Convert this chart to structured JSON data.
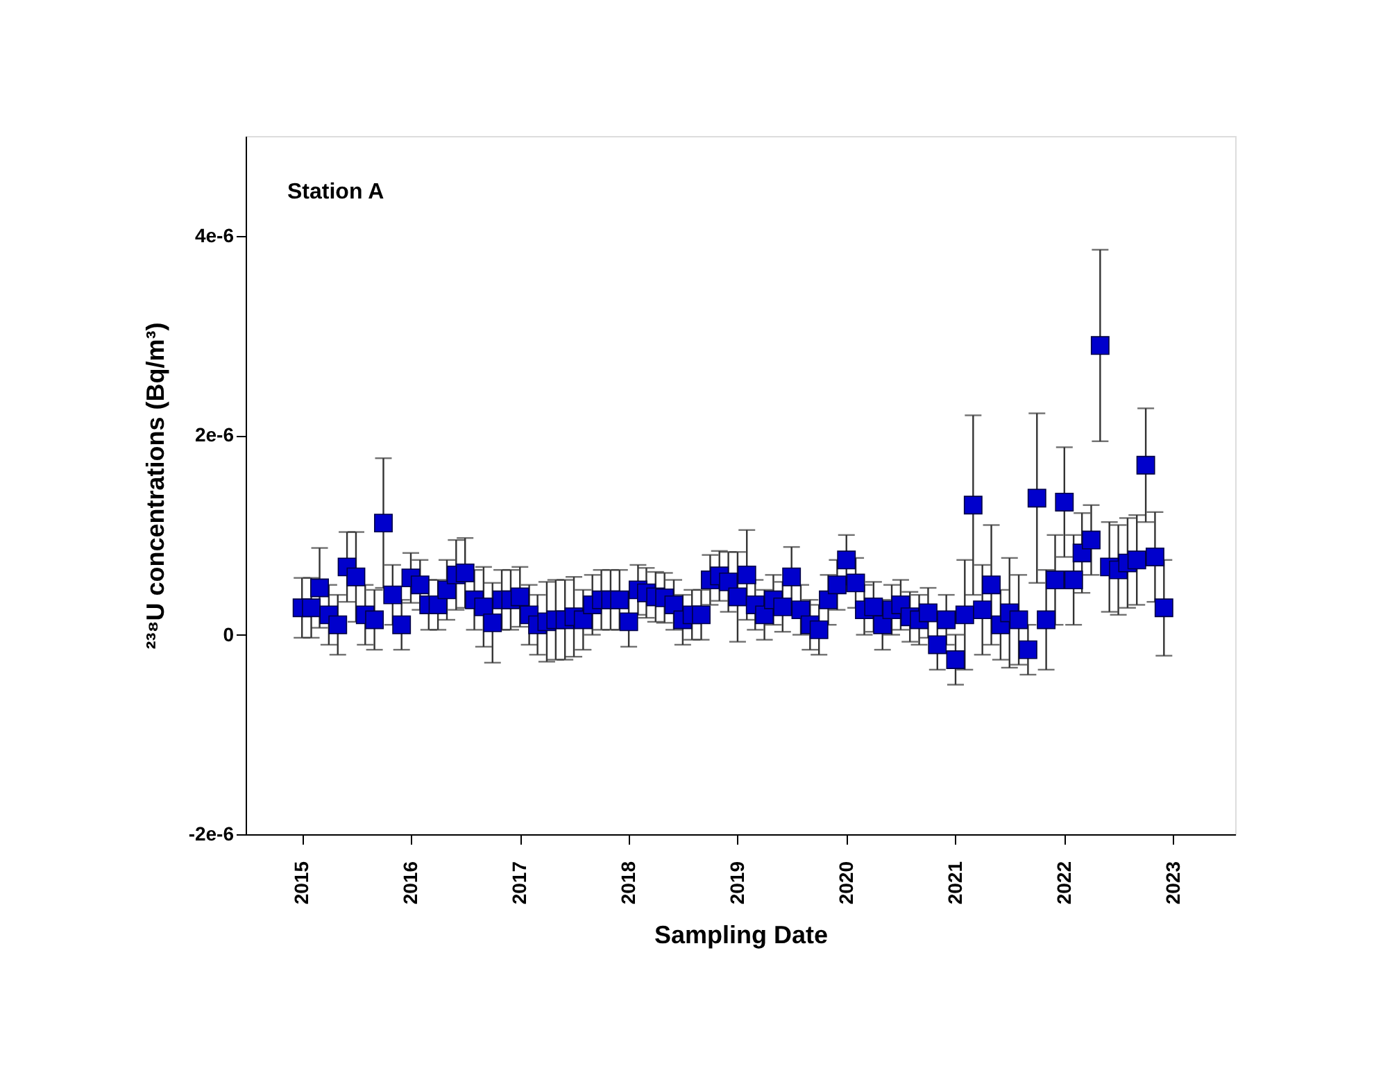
{
  "chart_data": {
    "type": "scatter",
    "xlabel": "Sampling Date",
    "ylabel": "²³⁸U concentrations (Bq/m³)",
    "annotations": [
      "Station A"
    ],
    "x": [
      "2015-01",
      "2015-02",
      "2015-03",
      "2015-04",
      "2015-05",
      "2015-06",
      "2015-07",
      "2015-08",
      "2015-09",
      "2015-10",
      "2015-11",
      "2015-12",
      "2016-01",
      "2016-02",
      "2016-03",
      "2016-04",
      "2016-05",
      "2016-06",
      "2016-07",
      "2016-08",
      "2016-09",
      "2016-10",
      "2016-11",
      "2016-12",
      "2017-01",
      "2017-02",
      "2017-03",
      "2017-04",
      "2017-05",
      "2017-06",
      "2017-07",
      "2017-08",
      "2017-09",
      "2017-10",
      "2017-11",
      "2017-12",
      "2018-01",
      "2018-02",
      "2018-03",
      "2018-04",
      "2018-05",
      "2018-06",
      "2018-07",
      "2018-08",
      "2018-09",
      "2018-10",
      "2018-11",
      "2018-12",
      "2019-01",
      "2019-02",
      "2019-03",
      "2019-04",
      "2019-05",
      "2019-06",
      "2019-07",
      "2019-08",
      "2019-09",
      "2019-10",
      "2019-11",
      "2019-12",
      "2020-01",
      "2020-02",
      "2020-03",
      "2020-04",
      "2020-05",
      "2020-06",
      "2020-07",
      "2020-08",
      "2020-09",
      "2020-10",
      "2020-11",
      "2020-12",
      "2021-01",
      "2021-02",
      "2021-03",
      "2021-04",
      "2021-05",
      "2021-06",
      "2021-07",
      "2021-08",
      "2021-09",
      "2021-10",
      "2021-11",
      "2021-12",
      "2022-01",
      "2022-02",
      "2022-03",
      "2022-04",
      "2022-05",
      "2022-06",
      "2022-07",
      "2022-08",
      "2022-09",
      "2022-10",
      "2022-11",
      "2022-12"
    ],
    "series": [
      {
        "color": "#0000cc",
        "values": [
          2.7e-07,
          2.7e-07,
          4.7e-07,
          2e-07,
          1e-07,
          6.8e-07,
          5.8e-07,
          2e-07,
          1.5e-07,
          1.12e-06,
          4e-07,
          1e-07,
          5.7e-07,
          5e-07,
          3e-07,
          3e-07,
          4.5e-07,
          6e-07,
          6.2e-07,
          3.5e-07,
          2.8e-07,
          1.2e-07,
          3.5e-07,
          3.5e-07,
          3.8e-07,
          2e-07,
          1e-07,
          1.3e-07,
          1.5e-07,
          1.5e-07,
          1.8e-07,
          1.5e-07,
          3e-07,
          3.5e-07,
          3.5e-07,
          3.5e-07,
          1.3e-07,
          4.5e-07,
          4.2e-07,
          3.8e-07,
          3.7e-07,
          3e-07,
          1.5e-07,
          2e-07,
          2e-07,
          5.5e-07,
          5.9e-07,
          5.3e-07,
          3.8e-07,
          6e-07,
          3e-07,
          2e-07,
          3.5e-07,
          2.8e-07,
          5.8e-07,
          2.5e-07,
          1e-07,
          5e-08,
          3.5e-07,
          5e-07,
          7.5e-07,
          5.2e-07,
          2.5e-07,
          2.8e-07,
          1e-07,
          2.5e-07,
          3e-07,
          1.8e-07,
          1.5e-07,
          2.2e-07,
          -1e-07,
          1.5e-07,
          -2.5e-07,
          2e-07,
          1.3e-06,
          2.5e-07,
          5e-07,
          1e-07,
          2.2e-07,
          1.5e-07,
          -1.5e-07,
          1.37e-06,
          1.5e-07,
          5.5e-07,
          1.33e-06,
          5.5e-07,
          8.2e-07,
          9.5e-07,
          2.9e-06,
          6.8e-07,
          6.5e-07,
          7.2e-07,
          7.5e-07,
          1.7e-06,
          7.8e-07,
          2.7e-07
        ],
        "errors": [
          3e-07,
          3e-07,
          4e-07,
          3e-07,
          3e-07,
          3.5e-07,
          4.5e-07,
          3e-07,
          3e-07,
          6.5e-07,
          3e-07,
          2.5e-07,
          2.5e-07,
          2.5e-07,
          2.5e-07,
          2.5e-07,
          3e-07,
          3.5e-07,
          3.5e-07,
          3e-07,
          4e-07,
          4e-07,
          3e-07,
          3e-07,
          3e-07,
          3e-07,
          3e-07,
          4e-07,
          4e-07,
          4e-07,
          4e-07,
          3e-07,
          3e-07,
          3e-07,
          3e-07,
          3e-07,
          2.5e-07,
          2.5e-07,
          2.5e-07,
          2.5e-07,
          2.5e-07,
          2.5e-07,
          2.5e-07,
          2.5e-07,
          2.5e-07,
          2.5e-07,
          2.5e-07,
          3e-07,
          4.5e-07,
          4.5e-07,
          2.5e-07,
          2.5e-07,
          2.5e-07,
          2.5e-07,
          3e-07,
          2.5e-07,
          2.5e-07,
          2.5e-07,
          2.5e-07,
          2.5e-07,
          2.5e-07,
          2.5e-07,
          2.5e-07,
          2.5e-07,
          2.5e-07,
          2.5e-07,
          2.5e-07,
          2.5e-07,
          2.5e-07,
          2.5e-07,
          2.5e-07,
          2.5e-07,
          2.5e-07,
          5.5e-07,
          9e-07,
          4.5e-07,
          6e-07,
          3.5e-07,
          5.5e-07,
          4.5e-07,
          2.5e-07,
          8.5e-07,
          5e-07,
          4.5e-07,
          5.5e-07,
          4.5e-07,
          4e-07,
          3.5e-07,
          9.6e-07,
          4.5e-07,
          4.5e-07,
          4.5e-07,
          4.5e-07,
          5.7e-07,
          4.5e-07,
          4.8e-07
        ]
      }
    ],
    "xlim": [
      "2014-06-26",
      "2023-07-28"
    ],
    "xticks": [
      "2015",
      "2016",
      "2017",
      "2018",
      "2019",
      "2020",
      "2021",
      "2022",
      "2023"
    ],
    "ylim": [
      -2e-06,
      5e-06
    ],
    "yticks": [
      {
        "value": -2e-06,
        "label": "-2e-6"
      },
      0,
      {
        "value": 2e-06,
        "label": "2e-6"
      },
      {
        "value": 4e-06,
        "label": "4e-6"
      }
    ],
    "marker": "square",
    "grid": false
  }
}
